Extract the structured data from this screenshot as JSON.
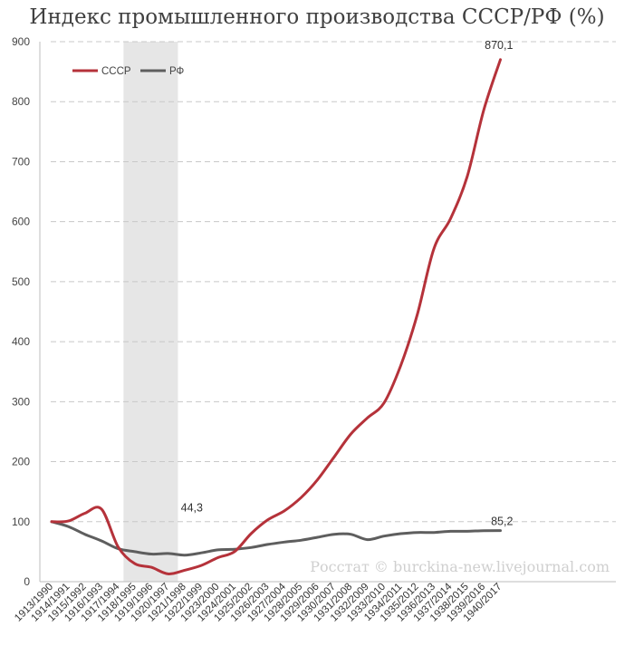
{
  "chart_data": {
    "type": "line",
    "title": "Индекс промышленного производства СССР/РФ (%)",
    "xlabel": "",
    "ylabel": "",
    "ylim": [
      0,
      900
    ],
    "yticks": [
      0,
      100,
      200,
      300,
      400,
      500,
      600,
      700,
      800,
      900
    ],
    "grid": "horizontal dashed",
    "legend_position": "top-left",
    "categories": [
      "1913/1990",
      "1914/1991",
      "1915/1992",
      "1916/1993",
      "1917/1994",
      "1918/1995",
      "1919/1996",
      "1920/1997",
      "1921/1998",
      "1922/1999",
      "1923/2000",
      "1924/2001",
      "1925/2002",
      "1926/2003",
      "1927/2004",
      "1928/2005",
      "1929/2006",
      "1930/2007",
      "1931/2008",
      "1932/2009",
      "1933/2010",
      "1934/2011",
      "1935/2012",
      "1936/2013",
      "1937/2014",
      "1938/2015",
      "1939/2016",
      "1940/2017"
    ],
    "series": [
      {
        "name": "СССР",
        "color": "#b5323a",
        "values": [
          100,
          101,
          114,
          121,
          58,
          30,
          24,
          13,
          19,
          27,
          40,
          50,
          80,
          103,
          118,
          140,
          170,
          208,
          246,
          273,
          298,
          360,
          445,
          555,
          605,
          675,
          786,
          870.1
        ]
      },
      {
        "name": "РФ",
        "color": "#5e5e5e",
        "values": [
          100,
          92,
          79,
          68,
          55,
          50,
          46,
          47,
          44.3,
          48,
          53,
          54,
          57,
          62,
          66,
          69,
          74,
          79,
          79,
          70,
          76,
          80,
          82,
          82,
          84,
          84,
          85,
          85.2
        ]
      }
    ],
    "shaded_region": [
      "1917/1994",
      "1920/1997"
    ],
    "annotations": [
      "870,1",
      "85,2",
      "44,3"
    ]
  },
  "watermark": "Росстат © burckina-new.livejournal.com"
}
